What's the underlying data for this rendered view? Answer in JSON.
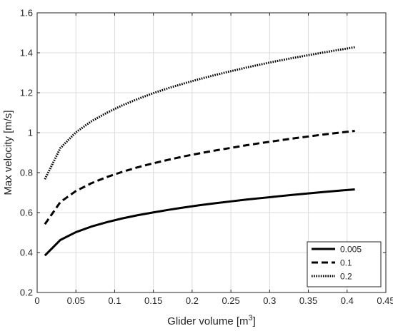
{
  "chart_data": {
    "type": "line",
    "title": "",
    "xlabel": "Glider volume [m",
    "xlabel_superscript": "3",
    "xlabel_suffix": "]",
    "ylabel": "Max velocity [m/s]",
    "xlim": [
      0,
      0.45
    ],
    "ylim": [
      0.2,
      1.6
    ],
    "xticks": [
      0,
      0.05,
      0.1,
      0.15,
      0.2,
      0.25,
      0.3,
      0.35,
      0.4,
      0.45
    ],
    "xtick_labels": [
      "0",
      "0.05",
      "0.1",
      "0.15",
      "0.2",
      "0.25",
      "0.3",
      "0.35",
      "0.4",
      "0.45"
    ],
    "yticks": [
      0.2,
      0.4,
      0.6,
      0.8,
      1.0,
      1.2,
      1.4,
      1.6
    ],
    "ytick_labels": [
      "0.2",
      "0.4",
      "0.6",
      "0.8",
      "1",
      "1.2",
      "1.4",
      "1.6"
    ],
    "grid": true,
    "legend_position": "bottom-right",
    "x": [
      0.01,
      0.03,
      0.05,
      0.07,
      0.09,
      0.11,
      0.13,
      0.15,
      0.17,
      0.19,
      0.21,
      0.23,
      0.25,
      0.27,
      0.29,
      0.31,
      0.33,
      0.35,
      0.37,
      0.39,
      0.41
    ],
    "series": [
      {
        "name": "0.005",
        "line_style": "solid",
        "color": "#000000",
        "values": [
          0.385,
          0.463,
          0.502,
          0.53,
          0.552,
          0.571,
          0.587,
          0.601,
          0.614,
          0.626,
          0.637,
          0.647,
          0.656,
          0.665,
          0.673,
          0.681,
          0.689,
          0.696,
          0.703,
          0.71,
          0.716
        ]
      },
      {
        "name": "0.1",
        "line_style": "dashed",
        "color": "#000000",
        "values": [
          0.542,
          0.653,
          0.708,
          0.747,
          0.778,
          0.804,
          0.827,
          0.847,
          0.865,
          0.882,
          0.897,
          0.911,
          0.924,
          0.937,
          0.949,
          0.96,
          0.971,
          0.981,
          0.991,
          1.0,
          1.009
        ]
      },
      {
        "name": "0.2",
        "line_style": "dotted",
        "color": "#000000",
        "values": [
          0.767,
          0.923,
          1.002,
          1.057,
          1.1,
          1.137,
          1.169,
          1.198,
          1.224,
          1.247,
          1.269,
          1.289,
          1.308,
          1.326,
          1.343,
          1.359,
          1.374,
          1.388,
          1.402,
          1.415,
          1.428
        ]
      }
    ]
  }
}
